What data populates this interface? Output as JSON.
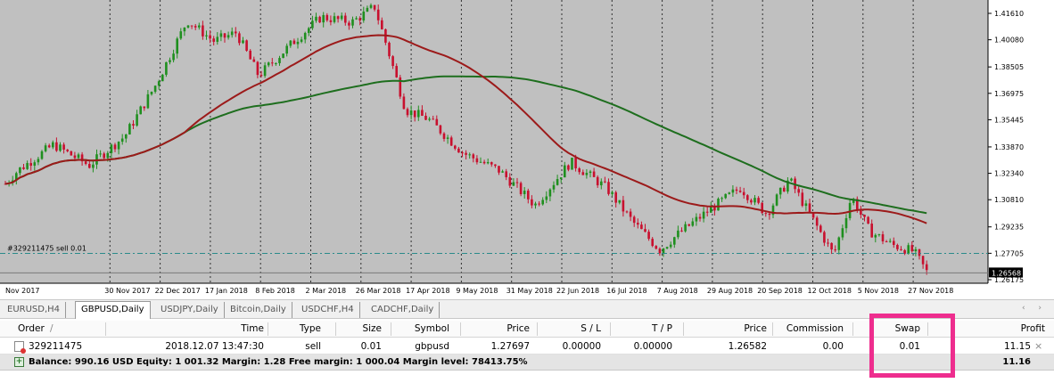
{
  "chart": {
    "symbol": "GBPUSD",
    "timeframe": "Daily",
    "colors": {
      "background": "#c0c0c0",
      "bull": "#1f8f1f",
      "bear": "#c8102e",
      "ma_fast": "#9c1a1a",
      "ma_slow": "#1e6e1e",
      "grid": "#000000",
      "order_line": "#2a8a8a"
    },
    "price_axis": [
      "1.41610",
      "1.40080",
      "1.38505",
      "1.36975",
      "1.35445",
      "1.33870",
      "1.32340",
      "1.30810",
      "1.29235",
      "1.27705",
      "1.26175"
    ],
    "current_price": "1.26568",
    "time_axis": [
      "Nov 2017",
      "30 Nov 2017",
      "22 Dec 2017",
      "17 Jan 2018",
      "8 Feb 2018",
      "2 Mar 2018",
      "26 Mar 2018",
      "17 Apr 2018",
      "9 May 2018",
      "31 May 2018",
      "22 Jun 2018",
      "16 Jul 2018",
      "7 Aug 2018",
      "29 Aug 2018",
      "20 Sep 2018",
      "12 Oct 2018",
      "5 Nov 2018",
      "27 Nov 2018"
    ],
    "order_line_label": "#329211475 sell 0.01",
    "order_price": 1.27697
  },
  "tabs": [
    {
      "label": "EURUSD,H4",
      "active": false
    },
    {
      "label": "GBPUSD,Daily",
      "active": true
    },
    {
      "label": "USDJPY,Daily",
      "active": false
    },
    {
      "label": "Bitcoin,Daily",
      "active": false
    },
    {
      "label": "USDCHF,H4",
      "active": false
    },
    {
      "label": "CADCHF,Daily",
      "active": false
    }
  ],
  "tabs_scroll": "‹ ›",
  "terminal": {
    "columns": {
      "order": "Order",
      "sort_indicator": "/",
      "time": "Time",
      "type": "Type",
      "size": "Size",
      "symbol": "Symbol",
      "price": "Price",
      "sl": "S / L",
      "tp": "T / P",
      "price2": "Price",
      "commission": "Commission",
      "swap": "Swap",
      "profit": "Profit"
    },
    "order": {
      "ticket": "329211475",
      "time": "2018.12.07 13:47:30",
      "type": "sell",
      "size": "0.01",
      "symbol": "gbpusd",
      "price": "1.27697",
      "sl": "0.00000",
      "tp": "0.00000",
      "current_price": "1.26582",
      "commission": "0.00",
      "swap": "0.01",
      "profit": "11.15",
      "close": "×"
    },
    "summary": {
      "text": "Balance: 990.16 USD  Equity: 1 001.32  Margin: 1.28  Free margin: 1 000.04  Margin level: 78413.75%",
      "total": "11.16"
    },
    "highlight_color": "#ee2d8e"
  }
}
